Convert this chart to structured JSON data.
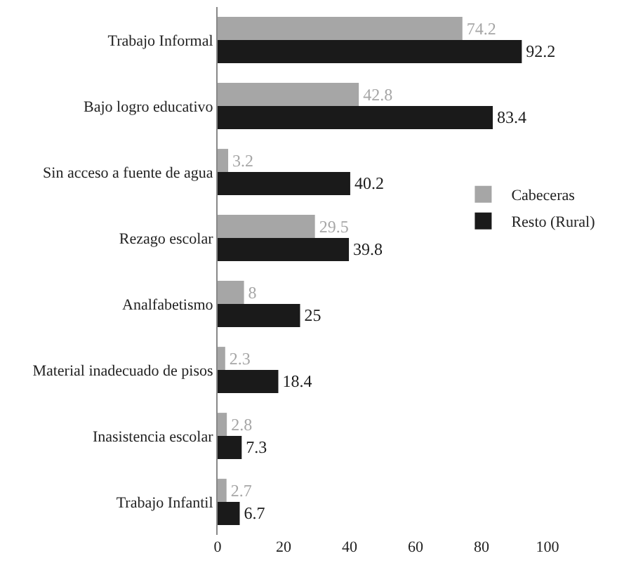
{
  "chart_data": {
    "type": "bar",
    "orientation": "horizontal",
    "categories": [
      "Trabajo Informal",
      "Bajo logro educativo",
      "Sin acceso a fuente de agua",
      "Rezago escolar",
      "Analfabetismo",
      "Material inadecuado de pisos",
      "Inasistencia escolar",
      "Trabajo Infantil"
    ],
    "series": [
      {
        "name": "Cabeceras",
        "color": "#a6a6a6",
        "values": [
          74.2,
          42.8,
          3.2,
          29.5,
          8,
          2.3,
          2.8,
          2.7
        ]
      },
      {
        "name": "Resto (Rural)",
        "color": "#1a1a1a",
        "values": [
          92.2,
          83.4,
          40.2,
          39.8,
          25,
          18.4,
          7.3,
          6.7
        ]
      }
    ],
    "xlim": [
      0,
      100
    ],
    "xticks": [
      0,
      20,
      40,
      60,
      80,
      100
    ],
    "grid": false,
    "legend": "right",
    "data_labels": true
  }
}
